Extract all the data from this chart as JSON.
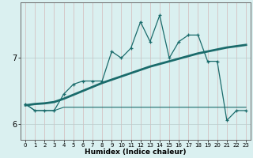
{
  "xlabel": "Humidex (Indice chaleur)",
  "x": [
    0,
    1,
    2,
    3,
    4,
    5,
    6,
    7,
    8,
    9,
    10,
    11,
    12,
    13,
    14,
    15,
    16,
    17,
    18,
    19,
    20,
    21,
    22,
    23
  ],
  "line1": [
    6.3,
    6.2,
    6.2,
    6.2,
    6.45,
    6.6,
    6.65,
    6.65,
    6.65,
    7.1,
    7.0,
    7.15,
    7.55,
    7.25,
    7.65,
    7.0,
    7.25,
    7.35,
    7.35,
    6.95,
    6.95,
    6.05,
    6.2,
    6.2
  ],
  "line2": [
    6.3,
    6.2,
    6.2,
    6.2,
    6.25,
    6.25,
    6.25,
    6.25,
    6.25,
    6.25,
    6.25,
    6.25,
    6.25,
    6.25,
    6.25,
    6.25,
    6.25,
    6.25,
    6.25,
    6.25,
    6.25,
    6.25,
    6.25,
    6.25
  ],
  "line3": [
    6.28,
    6.3,
    6.31,
    6.33,
    6.38,
    6.44,
    6.5,
    6.56,
    6.62,
    6.67,
    6.72,
    6.77,
    6.82,
    6.87,
    6.91,
    6.95,
    6.99,
    7.03,
    7.07,
    7.1,
    7.13,
    7.16,
    7.18,
    7.2
  ],
  "bg_color": "#daf0f0",
  "grid_color_v": "#c8dede",
  "grid_color_h": "#b8cccc",
  "line_color": "#1a6b6b",
  "ylim": [
    5.75,
    7.85
  ],
  "yticks": [
    6,
    7
  ],
  "xlim": [
    -0.5,
    23.5
  ],
  "xtick_fontsize": 5.0,
  "ytick_fontsize": 7.0,
  "xlabel_fontsize": 6.5
}
